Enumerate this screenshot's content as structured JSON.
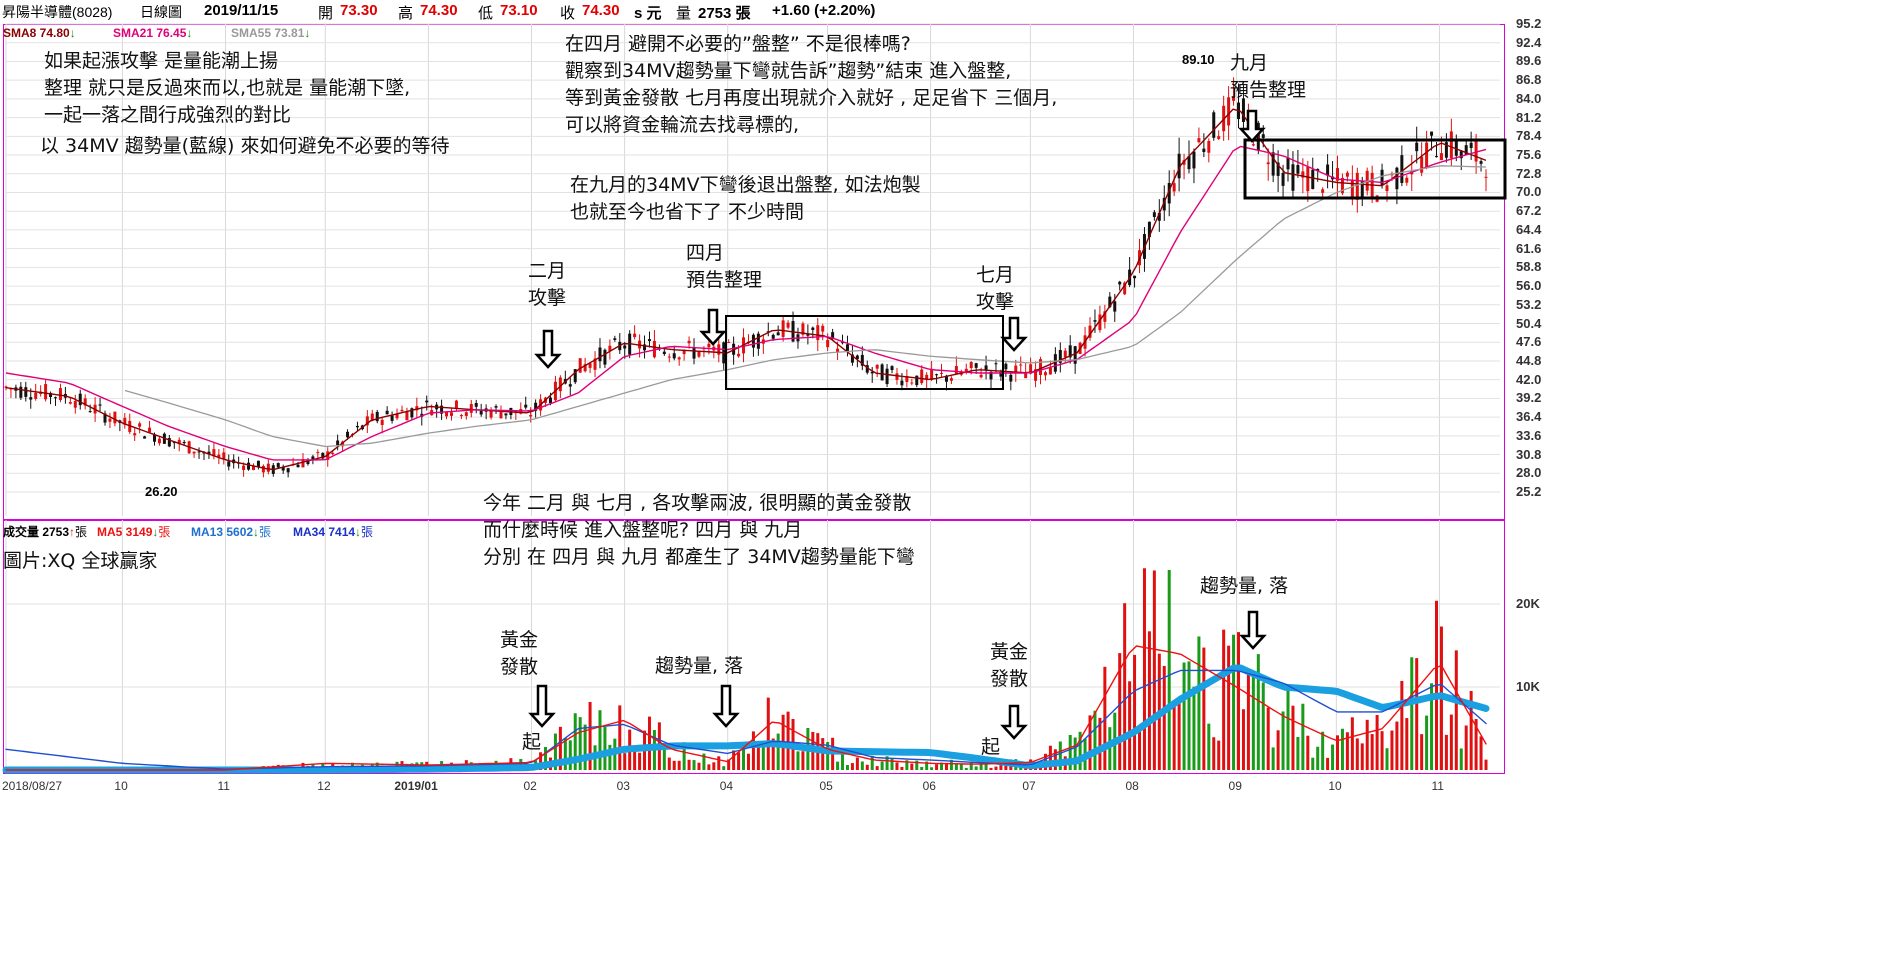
{
  "header": {
    "stock": "昇陽半導體(8028)",
    "period": "日線圖",
    "date": "2019/11/15",
    "open_label": "開",
    "open": "73.30",
    "high_label": "高",
    "high": "74.30",
    "low_label": "低",
    "low": "73.10",
    "close_label": "收",
    "close": "74.30",
    "close_suffix": "s 元",
    "volume_label": "量",
    "volume": "2753 張",
    "change": "+1.60 (+2.20%)"
  },
  "price_legend": [
    {
      "text": "SMA8 74.80",
      "color": "#8b0000",
      "arrow": "↓"
    },
    {
      "text": "SMA21 76.45",
      "color": "#e0007a",
      "arrow": "↓"
    },
    {
      "text": "SMA55 73.81",
      "color": "#999999",
      "arrow": "↓"
    }
  ],
  "volume_legend": [
    {
      "text": "成交量 2753",
      "color": "#000000",
      "arrow": "↑",
      "unit": "張"
    },
    {
      "text": "MA5 3149",
      "color": "#ee1111",
      "arrow": "↓",
      "unit": "張"
    },
    {
      "text": "MA13 5602",
      "color": "#1e6fd0",
      "arrow": "↓",
      "unit": "張"
    },
    {
      "text": "MA34 7414",
      "color": "#1b2fc9",
      "arrow": "↓",
      "unit": "張"
    }
  ],
  "price_ticks": [
    "95.2",
    "92.4",
    "89.6",
    "86.8",
    "84.0",
    "81.2",
    "78.4",
    "75.6",
    "72.8",
    "70.0",
    "67.2",
    "64.4",
    "61.6",
    "58.8",
    "56.0",
    "53.2",
    "50.4",
    "47.6",
    "44.8",
    "42.0",
    "39.2",
    "36.4",
    "33.6",
    "30.8",
    "28.0",
    "25.2"
  ],
  "volume_ticks": [
    "20K",
    "10K"
  ],
  "x_ticks": [
    "2018/08/27",
    "10",
    "11",
    "12",
    "2019/01",
    "02",
    "03",
    "04",
    "05",
    "06",
    "07",
    "08",
    "09",
    "10",
    "11"
  ],
  "annotations": {
    "top_left": [
      "如果起漲攻擊 是量能潮上揚",
      "整理 就只是反過來而以,也就是 量能潮下墜,",
      "一起一落之間行成強烈的對比",
      "以 34MV 趨勢量(藍線) 來如何避免不必要的等待"
    ],
    "top_center": [
      "在四月 避開不必要的”盤整” 不是很棒嗎?",
      "觀察到34MV趨勢量下彎就告訴”趨勢”結束  進入盤整,",
      " 等到黃金發散 七月再度出現就介入就好 , 足足省下 三個月,",
      "可以將資金輪流去找尋標的,"
    ],
    "top_center2": [
      "在九月的34MV下彎後退出盤整, 如法炮製",
      "也就至今也省下了 不少時間"
    ],
    "bottom_center": [
      "今年 二月 與 七月 , 各攻擊兩波, 很明顯的黃金發散",
      "而什麼時候 進入盤整呢? 四月 與 九月",
      "分別 在 四月 與 九月 都產生了 34MV趨勢量能下彎"
    ],
    "feb": [
      "二月",
      "攻擊"
    ],
    "apr": [
      "四月",
      "預告整理"
    ],
    "jul": [
      "七月",
      "攻擊"
    ],
    "sep": [
      "九月",
      "預告整理"
    ],
    "gold1": [
      "黃金",
      "發散"
    ],
    "gold2": [
      "黃金",
      "發散"
    ],
    "start1": "起",
    "start2": "起",
    "trend_fall1": "趨勢量, 落",
    "trend_fall2": "趨勢量, 落",
    "source": "圖片:XQ 全球贏家",
    "high_mark": "89.10",
    "low_mark": "26.20"
  },
  "chart_data": [
    {
      "type": "line",
      "title": "昇陽半導體(8028) 日線圖",
      "x": [
        "2018-08-27",
        "2018-09-15",
        "2018-10-01",
        "2018-10-15",
        "2018-11-01",
        "2018-11-15",
        "2018-12-01",
        "2018-12-15",
        "2019-01-01",
        "2019-01-15",
        "2019-02-01",
        "2019-02-15",
        "2019-03-01",
        "2019-03-15",
        "2019-04-01",
        "2019-04-15",
        "2019-05-01",
        "2019-05-15",
        "2019-06-01",
        "2019-06-15",
        "2019-07-01",
        "2019-07-15",
        "2019-08-01",
        "2019-08-15",
        "2019-09-01",
        "2019-09-15",
        "2019-10-01",
        "2019-10-15",
        "2019-11-01",
        "2019-11-15"
      ],
      "series": [
        {
          "name": "SMA8",
          "values": [
            40.8,
            39.5,
            35.5,
            33.0,
            30.0,
            28.5,
            30.5,
            36.0,
            38.0,
            37.5,
            37.0,
            43.5,
            47.5,
            46.5,
            46.0,
            49.5,
            48.5,
            43.0,
            42.0,
            43.5,
            43.0,
            46.0,
            58.0,
            74.0,
            83.0,
            73.0,
            71.5,
            71.0,
            77.5,
            74.8
          ]
        },
        {
          "name": "SMA21",
          "values": [
            43.0,
            41.5,
            38.0,
            35.0,
            32.0,
            30.0,
            30.0,
            33.5,
            37.0,
            37.5,
            37.3,
            40.0,
            45.5,
            47.0,
            46.5,
            48.0,
            48.5,
            46.0,
            43.5,
            43.0,
            43.0,
            45.0,
            51.0,
            64.0,
            77.0,
            75.5,
            72.0,
            71.5,
            74.5,
            76.45
          ]
        },
        {
          "name": "SMA55",
          "values": [
            null,
            null,
            40.5,
            38.5,
            36.0,
            33.5,
            32.0,
            32.5,
            34.0,
            35.0,
            36.0,
            38.0,
            40.0,
            42.0,
            43.5,
            45.0,
            46.0,
            46.5,
            45.5,
            45.0,
            44.5,
            45.0,
            47.0,
            52.0,
            60.0,
            66.0,
            70.0,
            72.5,
            74.0,
            73.81
          ]
        }
      ],
      "high_label": 89.1,
      "low_label": 26.2,
      "ylim": [
        25.2,
        95.2
      ]
    },
    {
      "type": "line",
      "title": "成交量",
      "x": [
        "2018-08-27",
        "2018-10-01",
        "2018-11-01",
        "2018-12-01",
        "2019-01-01",
        "2019-02-01",
        "2019-02-15",
        "2019-03-01",
        "2019-03-15",
        "2019-04-01",
        "2019-04-15",
        "2019-05-01",
        "2019-05-15",
        "2019-06-01",
        "2019-06-15",
        "2019-07-01",
        "2019-07-15",
        "2019-08-01",
        "2019-08-15",
        "2019-09-01",
        "2019-09-15",
        "2019-10-01",
        "2019-10-15",
        "2019-11-01",
        "2019-11-15"
      ],
      "series": [
        {
          "name": "MA34",
          "values": [
            0,
            0,
            0,
            0,
            100,
            300,
            1300,
            2500,
            2900,
            2900,
            3200,
            2300,
            2200,
            2100,
            1400,
            500,
            1100,
            4500,
            8500,
            12500,
            10000,
            9500,
            7500,
            9000,
            7414
          ]
        },
        {
          "name": "MA13",
          "values": [
            2500,
            800,
            100,
            400,
            500,
            800,
            5000,
            5500,
            3000,
            2000,
            3500,
            3000,
            1500,
            1200,
            900,
            600,
            2800,
            9500,
            12000,
            12000,
            10500,
            7000,
            7000,
            10500,
            5602
          ]
        },
        {
          "name": "MA5",
          "values": [
            0,
            0,
            0,
            800,
            600,
            900,
            4500,
            6000,
            2500,
            1000,
            6000,
            2500,
            1200,
            800,
            700,
            900,
            3000,
            15000,
            14000,
            10000,
            6500,
            3500,
            5000,
            13000,
            3149
          ]
        }
      ],
      "volume_latest": 2753,
      "y_ticks": [
        "10K",
        "20K"
      ]
    }
  ]
}
